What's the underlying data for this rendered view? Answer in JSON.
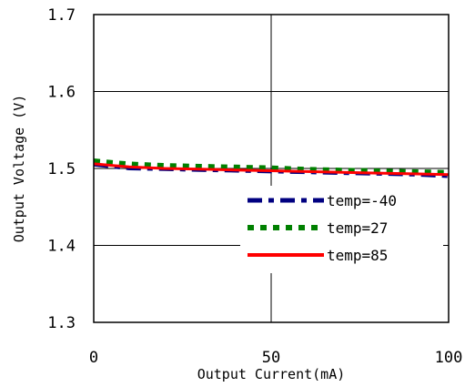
{
  "chart_data": {
    "type": "line",
    "xlabel": "Output Current(mA)",
    "ylabel": "Output Voltage (V)",
    "xlim": [
      0,
      100
    ],
    "ylim": [
      1.3,
      1.7
    ],
    "x_ticks": [
      0,
      50,
      100
    ],
    "x_tick_labels": [
      "0",
      "50",
      "100"
    ],
    "y_ticks": [
      1.3,
      1.4,
      1.5,
      1.6,
      1.7
    ],
    "y_tick_labels": [
      "1.3",
      "1.4",
      "1.5",
      "1.6",
      "1.7"
    ],
    "grid": true,
    "legend_position": "bottom-right",
    "series": [
      {
        "name": "temp=-40",
        "color": "#000080",
        "style": "dash-dot",
        "x": [
          0,
          10,
          20,
          30,
          40,
          50,
          60,
          70,
          80,
          90,
          100
        ],
        "y": [
          1.505,
          1.5,
          1.499,
          1.498,
          1.497,
          1.496,
          1.495,
          1.494,
          1.493,
          1.492,
          1.49
        ]
      },
      {
        "name": "temp=27",
        "color": "#008000",
        "style": "dotted",
        "x": [
          0,
          10,
          20,
          30,
          40,
          50,
          60,
          70,
          80,
          90,
          100
        ],
        "y": [
          1.51,
          1.506,
          1.504,
          1.503,
          1.502,
          1.501,
          1.499,
          1.498,
          1.497,
          1.496,
          1.495
        ]
      },
      {
        "name": "temp=85",
        "color": "#ff0000",
        "style": "solid",
        "x": [
          0,
          10,
          20,
          30,
          40,
          50,
          60,
          70,
          80,
          90,
          100
        ],
        "y": [
          1.506,
          1.502,
          1.5,
          1.499,
          1.498,
          1.497,
          1.496,
          1.495,
          1.494,
          1.493,
          1.492
        ]
      }
    ]
  }
}
